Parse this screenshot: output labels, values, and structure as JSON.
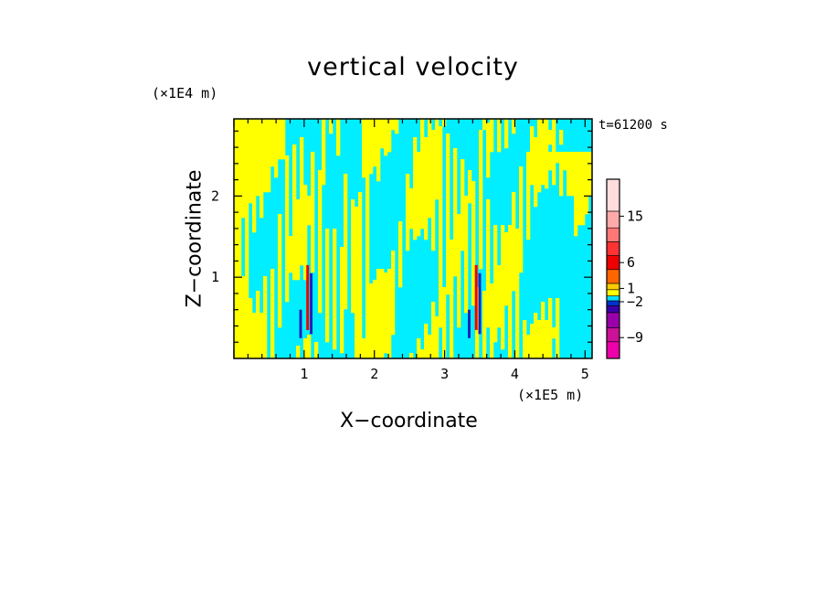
{
  "chart_data": {
    "type": "heatmap",
    "title": "vertical velocity",
    "xlabel": "X−coordinate",
    "ylabel": "Z−coordinate",
    "x_unit": "(×1E5 m)",
    "z_unit": "(×1E4 m)",
    "time_label": "t=61200 s",
    "xlim": [
      0,
      5.1
    ],
    "ylim": [
      0,
      2.95
    ],
    "x_ticks": [
      "1",
      "2",
      "3",
      "4",
      "5"
    ],
    "y_ticks": [
      "1",
      "2"
    ],
    "colorbar": {
      "labels": [
        "15",
        "6",
        "1",
        "−2",
        "−9"
      ],
      "colors_bottom_to_top": [
        "#ee00aa",
        "#cc1199",
        "#9900aa",
        "#3a00aa",
        "#0033cc",
        "#00ddff",
        "#ffff00",
        "#ffcc00",
        "#ff6600",
        "#ee0000",
        "#ff3333",
        "#ff7777",
        "#ffaaaa",
        "#ffdddd"
      ]
    },
    "fields": {
      "background": "#00eeff",
      "positive": "#ffff00",
      "strong_up": "#ee0000",
      "strong_down": "#2222bb"
    }
  }
}
